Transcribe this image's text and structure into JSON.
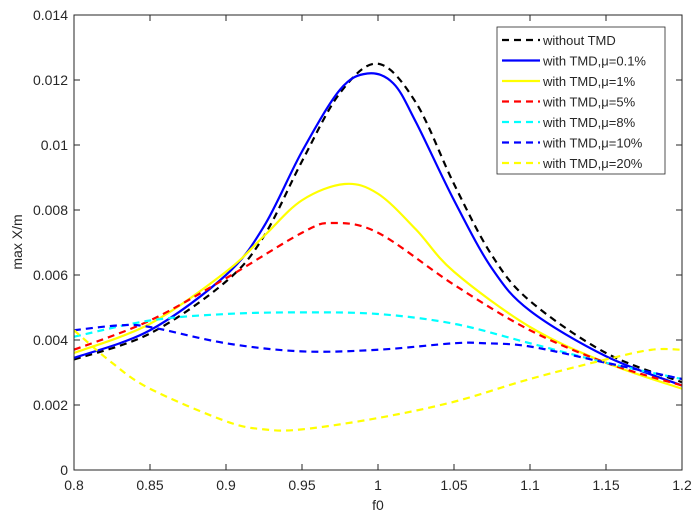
{
  "chart_data": {
    "type": "line",
    "title": "",
    "xlabel": "f0",
    "ylabel": "max X/m",
    "xlim": [
      0.8,
      1.2
    ],
    "ylim": [
      0,
      0.014
    ],
    "xticks": [
      "0.8",
      "0.85",
      "0.9",
      "0.95",
      "1",
      "1.05",
      "1.1",
      "1.15",
      "1.2"
    ],
    "yticks": [
      "0",
      "0.002",
      "0.004",
      "0.006",
      "0.008",
      "0.01",
      "0.012",
      "0.014"
    ],
    "grid": false,
    "legend_position": "top-right",
    "series": [
      {
        "name": "without TMD",
        "color": "#000000",
        "dash": true,
        "x": [
          0.8,
          0.85,
          0.9,
          0.925,
          0.95,
          0.975,
          1.0,
          1.025,
          1.05,
          1.075,
          1.1,
          1.15,
          1.2
        ],
        "y": [
          0.0034,
          0.0042,
          0.0058,
          0.0072,
          0.0095,
          0.0116,
          0.0125,
          0.0113,
          0.0088,
          0.0066,
          0.0052,
          0.0036,
          0.0027
        ]
      },
      {
        "name": "with TMD,μ=0.1%",
        "color": "#0000ff",
        "dash": false,
        "x": [
          0.8,
          0.85,
          0.9,
          0.925,
          0.95,
          0.975,
          0.993,
          1.01,
          1.025,
          1.05,
          1.075,
          1.1,
          1.15,
          1.2
        ],
        "y": [
          0.00345,
          0.0043,
          0.006,
          0.0075,
          0.0098,
          0.0117,
          0.0122,
          0.0119,
          0.0107,
          0.0083,
          0.0062,
          0.0049,
          0.0035,
          0.0026
        ]
      },
      {
        "name": "with TMD,μ=1%",
        "color": "#ffff00",
        "dash": false,
        "x": [
          0.8,
          0.85,
          0.9,
          0.925,
          0.95,
          0.978,
          1.0,
          1.025,
          1.05,
          1.1,
          1.15,
          1.2
        ],
        "y": [
          0.0036,
          0.0045,
          0.0061,
          0.0072,
          0.0083,
          0.0088,
          0.0085,
          0.0074,
          0.0061,
          0.0044,
          0.0033,
          0.0025
        ]
      },
      {
        "name": "with TMD,μ=5%",
        "color": "#ff0000",
        "dash": true,
        "x": [
          0.8,
          0.85,
          0.9,
          0.95,
          0.97,
          1.0,
          1.05,
          1.1,
          1.15,
          1.2
        ],
        "y": [
          0.0037,
          0.0046,
          0.0059,
          0.0073,
          0.0076,
          0.0073,
          0.0057,
          0.0043,
          0.0033,
          0.0026
        ]
      },
      {
        "name": "with TMD,μ=8%",
        "color": "#00ffff",
        "dash": true,
        "x": [
          0.8,
          0.85,
          0.9,
          0.95,
          1.0,
          1.05,
          1.1,
          1.15,
          1.2
        ],
        "y": [
          0.0041,
          0.0046,
          0.0048,
          0.00485,
          0.0048,
          0.0045,
          0.0039,
          0.0033,
          0.0028
        ]
      },
      {
        "name": "with TMD,μ=10%",
        "color": "#0000ff",
        "dash": true,
        "x": [
          0.8,
          0.83,
          0.85,
          0.9,
          0.95,
          1.0,
          1.05,
          1.07,
          1.1,
          1.15,
          1.2
        ],
        "y": [
          0.0043,
          0.00445,
          0.0044,
          0.0039,
          0.00365,
          0.0037,
          0.0039,
          0.0039,
          0.0038,
          0.0033,
          0.0028
        ]
      },
      {
        "name": "with TMD,μ=20%",
        "color": "#ffff00",
        "dash": true,
        "x": [
          0.8,
          0.825,
          0.85,
          0.9,
          0.925,
          0.95,
          1.0,
          1.05,
          1.1,
          1.15,
          1.18,
          1.2
        ],
        "y": [
          0.0043,
          0.0033,
          0.0025,
          0.0015,
          0.00125,
          0.00125,
          0.0016,
          0.0021,
          0.0028,
          0.0034,
          0.0037,
          0.0037
        ]
      }
    ]
  }
}
